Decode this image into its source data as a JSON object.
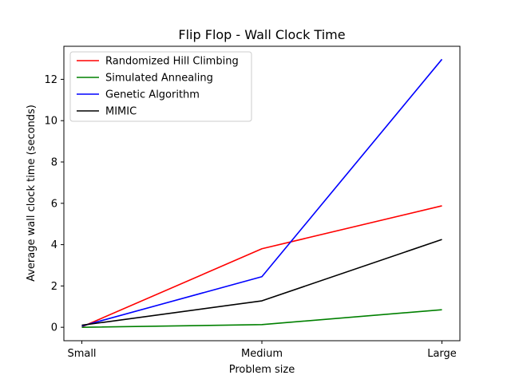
{
  "chart_data": {
    "type": "line",
    "title": "Flip Flop - Wall Clock Time",
    "xlabel": "Problem size",
    "ylabel": "Average wall clock time (seconds)",
    "categories": [
      "Small",
      "Medium",
      "Large"
    ],
    "ylim": [
      -0.65,
      13.6
    ],
    "yticks": [
      0,
      2,
      4,
      6,
      8,
      10,
      12
    ],
    "grid": false,
    "legend_position": "top-left",
    "series": [
      {
        "name": "Randomized Hill Climbing",
        "color": "#ff0000",
        "values": [
          0.02,
          3.8,
          5.88
        ]
      },
      {
        "name": "Simulated Annealing",
        "color": "#008000",
        "values": [
          0.0,
          0.13,
          0.85
        ]
      },
      {
        "name": "Genetic Algorithm",
        "color": "#0000ff",
        "values": [
          0.06,
          2.45,
          12.97
        ]
      },
      {
        "name": "MIMIC",
        "color": "#000000",
        "values": [
          0.1,
          1.28,
          4.25
        ]
      }
    ]
  }
}
